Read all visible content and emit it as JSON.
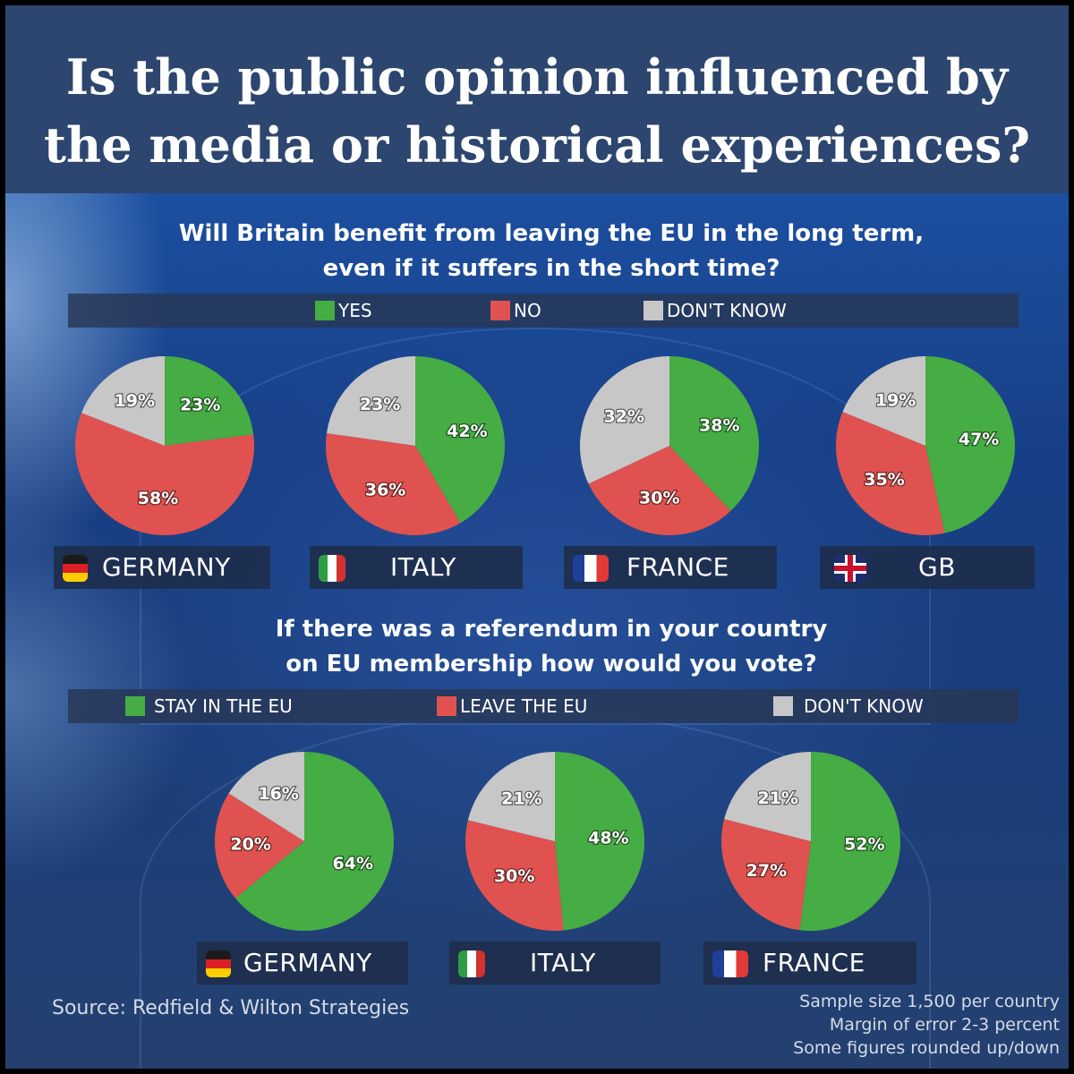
{
  "banner": {
    "line1": "Is the public opinion influenced by",
    "line2": "the media or historical experiences?"
  },
  "colors": {
    "yes": "#45ad43",
    "no": "#e0524f",
    "dont_know": "#c7c7c7"
  },
  "q1": {
    "line1": "Will Britain benefit from leaving the EU in the long term,",
    "line2": "even if it suffers in the short time?",
    "legend": {
      "yes": "YES",
      "no": "NO",
      "dont_know": "DON'T KNOW"
    },
    "countries": [
      "GERMANY",
      "ITALY",
      "FRANCE",
      "GB"
    ]
  },
  "q2": {
    "line1": "If there was a referendum in your country",
    "line2": "on EU membership how would you vote?",
    "legend": {
      "stay": "STAY IN THE EU",
      "leave": "LEAVE THE EU",
      "dont_know": "DON'T KNOW"
    },
    "countries": [
      "GERMANY",
      "ITALY",
      "FRANCE"
    ]
  },
  "footer": {
    "source": "Source: Redfield & Wilton Strategies",
    "note1": "Sample size 1,500 per country",
    "note2": "Margin of error 2-3 percent",
    "note3": "Some figures rounded up/down"
  },
  "chart_data": [
    {
      "type": "pie",
      "title": "Will Britain benefit from leaving the EU in the long term, even if it suffers in the short time?",
      "categories": [
        "YES",
        "NO",
        "DON'T KNOW"
      ],
      "series": [
        {
          "name": "GERMANY",
          "values": [
            23,
            58,
            19
          ],
          "labels": [
            "23%",
            "58%",
            "19%"
          ]
        },
        {
          "name": "ITALY",
          "values": [
            42,
            36,
            23
          ],
          "labels": [
            "42%",
            "36%",
            "23%"
          ]
        },
        {
          "name": "FRANCE",
          "values": [
            38,
            30,
            32
          ],
          "labels": [
            "38%",
            "30%",
            "32%"
          ]
        },
        {
          "name": "GB",
          "values": [
            47,
            35,
            19
          ],
          "labels": [
            "47%",
            "35%",
            "19%"
          ]
        }
      ],
      "legend": "top"
    },
    {
      "type": "pie",
      "title": "If there was a referendum in your country on EU membership how would you vote?",
      "categories": [
        "STAY IN THE EU",
        "LEAVE THE EU",
        "DON'T KNOW"
      ],
      "series": [
        {
          "name": "GERMANY",
          "values": [
            64,
            20,
            16
          ],
          "labels": [
            "64%",
            "20%",
            "16%"
          ]
        },
        {
          "name": "ITALY",
          "values": [
            48,
            30,
            21
          ],
          "labels": [
            "48%",
            "30%",
            "21%"
          ]
        },
        {
          "name": "FRANCE",
          "values": [
            52,
            27,
            21
          ],
          "labels": [
            "52%",
            "27%",
            "21%"
          ]
        }
      ],
      "legend": "top"
    }
  ]
}
